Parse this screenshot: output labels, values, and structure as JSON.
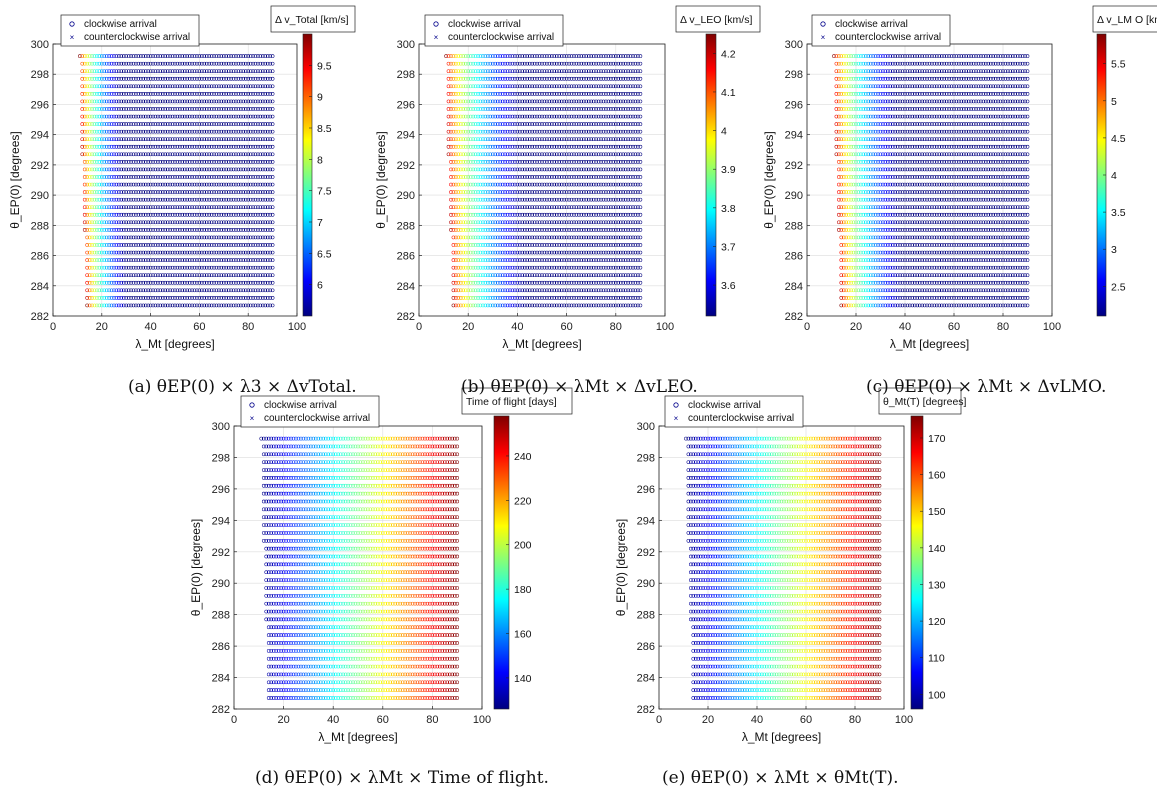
{
  "figure": {
    "legend": {
      "clockwise": "clockwise arrival",
      "counterclockwise": "counterclockwise arrival"
    },
    "axis_text": {
      "y_label": "θ_EP(0) [degrees]",
      "x_label": "λ_Mt [degrees]"
    }
  },
  "colormap": [
    "#00007f",
    "#0000ff",
    "#007fff",
    "#00ffff",
    "#7fff7f",
    "#ffff00",
    "#ff7f00",
    "#ff0000",
    "#7f0000"
  ],
  "marker_colors": {
    "clockwise": "#00008b",
    "counterclockwise": "#00008b"
  },
  "captions": {
    "a": "(a) θEP(0) × λ3 × ΔvTotal.",
    "b": "(b) θEP(0) × λMt × ΔvLEO.",
    "c": "(c) θEP(0) × λMt × ΔvLMO.",
    "d": "(d) θEP(0) × λMt × Time of flight.",
    "e": "(e) θEP(0) × λMt × θMt(T)."
  },
  "chart_data": [
    {
      "id": "a",
      "type": "scatter",
      "title": "",
      "xlabel": "λ_Mt [degrees]",
      "ylabel": "θ_EP(0) [degrees]",
      "xlim": [
        0,
        100
      ],
      "ylim": [
        282,
        300
      ],
      "xticks": [
        "0",
        "20",
        "40",
        "60",
        "80",
        "100"
      ],
      "yticks": [
        "282",
        "284",
        "286",
        "288",
        "290",
        "292",
        "294",
        "296",
        "298",
        "300"
      ],
      "x_range": [
        11,
        90
      ],
      "y_range": [
        282.7,
        299.2
      ],
      "left_edge": [
        [
          282.7,
          14
        ],
        [
          292.3,
          12
        ],
        [
          299.2,
          11
        ]
      ],
      "legend_position": "top-left",
      "grid": true,
      "series": [
        {
          "name": "clockwise arrival",
          "marker": "o"
        },
        {
          "name": "counterclockwise arrival",
          "marker": "x"
        }
      ],
      "colorbar": {
        "label": "Δ v_Total [km/s]",
        "range": [
          5.5,
          10
        ],
        "ticks": [
          "6",
          "6.5",
          "7",
          "7.5",
          "8",
          "8.5",
          "9",
          "9.5"
        ]
      },
      "color_model": "lambda",
      "value_range_lambda": [
        11,
        30
      ],
      "value_range": [
        5.5,
        10
      ]
    },
    {
      "id": "b",
      "type": "scatter",
      "title": "",
      "xlabel": "λ_Mt [degrees]",
      "ylabel": "θ_EP(0) [degrees]",
      "xlim": [
        0,
        100
      ],
      "ylim": [
        282,
        300
      ],
      "xticks": [
        "0",
        "20",
        "40",
        "60",
        "80",
        "100"
      ],
      "yticks": [
        "282",
        "284",
        "286",
        "288",
        "290",
        "292",
        "294",
        "296",
        "298",
        "300"
      ],
      "x_range": [
        11,
        90
      ],
      "y_range": [
        282.7,
        299.2
      ],
      "left_edge": [
        [
          282.7,
          14
        ],
        [
          292.3,
          12
        ],
        [
          299.2,
          11
        ]
      ],
      "legend_position": "top-left",
      "grid": true,
      "series": [
        {
          "name": "clockwise arrival",
          "marker": "o"
        },
        {
          "name": "counterclockwise arrival",
          "marker": "x"
        }
      ],
      "colorbar": {
        "label": "Δ v_LEO [km/s]",
        "range": [
          3.52,
          4.25
        ],
        "ticks": [
          "3.6",
          "3.7",
          "3.8",
          "3.9",
          "4",
          "4.1",
          "4.2"
        ]
      },
      "color_model": "lambda",
      "value_range_lambda": [
        11,
        45
      ],
      "value_range": [
        3.52,
        4.25
      ]
    },
    {
      "id": "c",
      "type": "scatter",
      "title": "",
      "xlabel": "λ_Mt [degrees]",
      "ylabel": "θ_EP(0) [degrees]",
      "xlim": [
        0,
        100
      ],
      "ylim": [
        282,
        300
      ],
      "xticks": [
        "0",
        "20",
        "40",
        "60",
        "80",
        "100"
      ],
      "yticks": [
        "282",
        "284",
        "286",
        "288",
        "290",
        "292",
        "294",
        "296",
        "298",
        "300"
      ],
      "x_range": [
        11,
        90
      ],
      "y_range": [
        282.7,
        299.2
      ],
      "left_edge": [
        [
          282.7,
          14
        ],
        [
          292.3,
          12
        ],
        [
          299.2,
          11
        ]
      ],
      "legend_position": "top-left",
      "grid": true,
      "series": [
        {
          "name": "clockwise arrival",
          "marker": "o"
        },
        {
          "name": "counterclockwise arrival",
          "marker": "x"
        }
      ],
      "colorbar": {
        "label": "Δ v_LM O [km/s]",
        "range": [
          2.1,
          5.9
        ],
        "ticks": [
          "2.5",
          "3",
          "3.5",
          "4",
          "4.5",
          "5",
          "5.5"
        ]
      },
      "color_model": "lambda",
      "value_range_lambda": [
        11,
        40
      ],
      "value_range": [
        2.1,
        5.9
      ]
    },
    {
      "id": "d",
      "type": "scatter",
      "title": "",
      "xlabel": "λ_Mt [degrees]",
      "ylabel": "θ_EP(0) [degrees]",
      "xlim": [
        0,
        100
      ],
      "ylim": [
        282,
        300
      ],
      "xticks": [
        "0",
        "20",
        "40",
        "60",
        "80",
        "100"
      ],
      "yticks": [
        "282",
        "284",
        "286",
        "288",
        "290",
        "292",
        "294",
        "296",
        "298",
        "300"
      ],
      "x_range": [
        11,
        90
      ],
      "y_range": [
        282.7,
        299.2
      ],
      "left_edge": [
        [
          282.7,
          14
        ],
        [
          292.3,
          12
        ],
        [
          299.2,
          11
        ]
      ],
      "legend_position": "top-left",
      "grid": true,
      "series": [
        {
          "name": "clockwise arrival",
          "marker": "o"
        },
        {
          "name": "counterclockwise arrival",
          "marker": "x"
        }
      ],
      "colorbar": {
        "label": "Time of flight [days]",
        "range": [
          126,
          258
        ],
        "ticks": [
          "140",
          "160",
          "180",
          "200",
          "220",
          "240"
        ]
      },
      "color_model": "linear",
      "value_range_lambda": [
        11,
        90
      ],
      "value_range": [
        126,
        258
      ]
    },
    {
      "id": "e",
      "type": "scatter",
      "title": "",
      "xlabel": "λ_Mt [degrees]",
      "ylabel": "θ_EP(0) [degrees]",
      "xlim": [
        0,
        100
      ],
      "ylim": [
        282,
        300
      ],
      "xticks": [
        "0",
        "20",
        "40",
        "60",
        "80",
        "100"
      ],
      "yticks": [
        "282",
        "284",
        "286",
        "288",
        "290",
        "292",
        "294",
        "296",
        "298",
        "300"
      ],
      "x_range": [
        11,
        90
      ],
      "y_range": [
        282.7,
        299.2
      ],
      "left_edge": [
        [
          282.7,
          14
        ],
        [
          292.3,
          12
        ],
        [
          299.2,
          11
        ]
      ],
      "legend_position": "top-left",
      "grid": true,
      "series": [
        {
          "name": "clockwise arrival",
          "marker": "o"
        },
        {
          "name": "counterclockwise arrival",
          "marker": "x"
        }
      ],
      "colorbar": {
        "label": "θ_Mt(T) [degrees]",
        "range": [
          96,
          176
        ],
        "ticks": [
          "100",
          "110",
          "120",
          "130",
          "140",
          "150",
          "160",
          "170"
        ]
      },
      "color_model": "linear",
      "value_range_lambda": [
        11,
        90
      ],
      "value_range": [
        96,
        176
      ]
    }
  ]
}
